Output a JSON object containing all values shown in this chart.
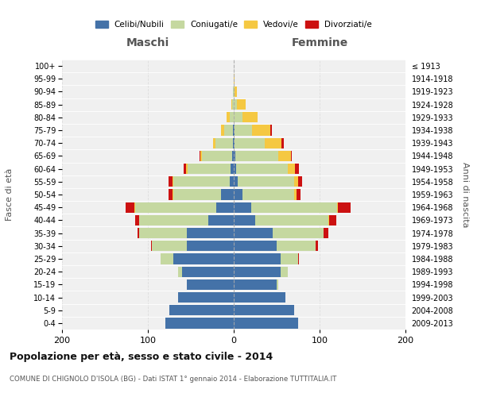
{
  "age_groups": [
    "0-4",
    "5-9",
    "10-14",
    "15-19",
    "20-24",
    "25-29",
    "30-34",
    "35-39",
    "40-44",
    "45-49",
    "50-54",
    "55-59",
    "60-64",
    "65-69",
    "70-74",
    "75-79",
    "80-84",
    "85-89",
    "90-94",
    "95-99",
    "100+"
  ],
  "birth_years": [
    "2009-2013",
    "2004-2008",
    "1999-2003",
    "1994-1998",
    "1989-1993",
    "1984-1988",
    "1979-1983",
    "1974-1978",
    "1969-1973",
    "1964-1968",
    "1959-1963",
    "1954-1958",
    "1949-1953",
    "1944-1948",
    "1939-1943",
    "1934-1938",
    "1929-1933",
    "1924-1928",
    "1919-1923",
    "1914-1918",
    "≤ 1913"
  ],
  "maschi": {
    "celibi": [
      80,
      75,
      65,
      55,
      60,
      70,
      55,
      55,
      30,
      20,
      15,
      5,
      4,
      2,
      1,
      1,
      0,
      0,
      0,
      0,
      0
    ],
    "coniugati": [
      0,
      0,
      0,
      0,
      5,
      15,
      40,
      55,
      80,
      95,
      55,
      65,
      50,
      35,
      20,
      10,
      5,
      2,
      1,
      0,
      0
    ],
    "vedovi": [
      0,
      0,
      0,
      0,
      0,
      0,
      0,
      0,
      0,
      1,
      1,
      1,
      2,
      2,
      3,
      4,
      3,
      1,
      0,
      0,
      0
    ],
    "divorziati": [
      0,
      0,
      0,
      0,
      0,
      0,
      1,
      2,
      5,
      10,
      5,
      5,
      2,
      1,
      0,
      0,
      0,
      0,
      0,
      0,
      0
    ]
  },
  "femmine": {
    "nubili": [
      75,
      70,
      60,
      50,
      55,
      55,
      50,
      45,
      25,
      20,
      10,
      5,
      3,
      2,
      1,
      1,
      0,
      0,
      0,
      0,
      0
    ],
    "coniugate": [
      0,
      0,
      0,
      2,
      8,
      20,
      45,
      60,
      85,
      100,
      60,
      65,
      60,
      50,
      35,
      20,
      10,
      4,
      1,
      0,
      0
    ],
    "vedove": [
      0,
      0,
      0,
      0,
      0,
      0,
      0,
      0,
      1,
      1,
      3,
      5,
      8,
      15,
      20,
      22,
      18,
      10,
      3,
      1,
      0
    ],
    "divorziate": [
      0,
      0,
      0,
      0,
      0,
      1,
      3,
      5,
      8,
      15,
      5,
      5,
      5,
      1,
      2,
      1,
      0,
      0,
      0,
      0,
      0
    ]
  },
  "colors": {
    "celibi_nubili": "#4472a8",
    "coniugati": "#c5d8a0",
    "vedovi": "#f5c842",
    "divorziati": "#cc1111"
  },
  "title": "Popolazione per età, sesso e stato civile - 2014",
  "subtitle": "COMUNE DI CHIGNOLO D'ISOLA (BG) - Dati ISTAT 1° gennaio 2014 - Elaborazione TUTTITALIA.IT",
  "ylabel_left": "Fasce di età",
  "ylabel_right": "Anni di nascita",
  "xlabel_left": "Maschi",
  "xlabel_right": "Femmine",
  "xlim": 200,
  "background_color": "#ffffff",
  "plot_bg_color": "#f0f0f0",
  "grid_color": "#dddddd"
}
